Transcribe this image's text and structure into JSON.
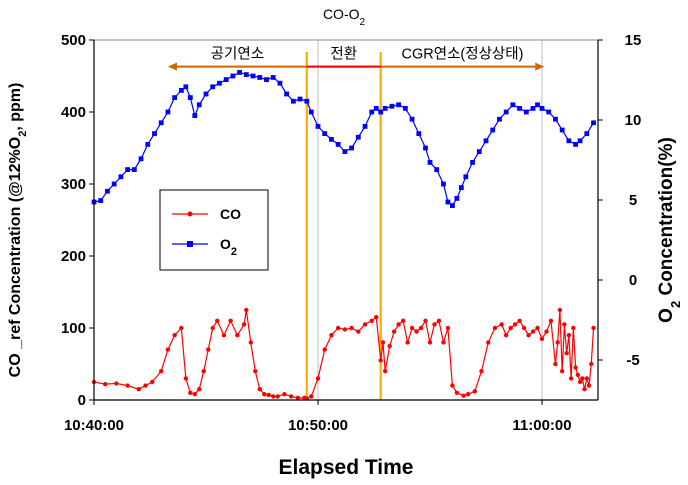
{
  "chart_data": {
    "type": "line",
    "title": "CO-O",
    "title_sub": "2",
    "xlabel": "Elapsed Time",
    "ylabel_left": "CO _ref Concentration (@12%O",
    "ylabel_left_sub": "2",
    "ylabel_left_suffix": ", ppm)",
    "ylabel_right": "O",
    "ylabel_right_sub": "2",
    "ylabel_right_suffix": " Concentration(%)",
    "x_range_minutes": [
      0,
      22.5
    ],
    "x_ticks": [
      {
        "label": "10:40:00",
        "minute": 0
      },
      {
        "label": "10:50:00",
        "minute": 10
      },
      {
        "label": "11:00:00",
        "minute": 20
      }
    ],
    "ylim_left": [
      0,
      500
    ],
    "yticks_left": [
      "0",
      "100",
      "200",
      "300",
      "400",
      "500"
    ],
    "ylim_right": [
      -7.5,
      15
    ],
    "yticks_right": [
      "-5",
      "0",
      "5",
      "10",
      "15"
    ],
    "grid": "vertical gridlines at x ticks",
    "legend": {
      "placement": "center-left",
      "entries": [
        {
          "label": "CO",
          "sub": "",
          "color": "#ff0000",
          "marker": "circle"
        },
        {
          "label": "O",
          "sub": "2",
          "color": "#0000ff",
          "marker": "square"
        }
      ]
    },
    "phase_lines_minute": [
      9.5,
      12.8
    ],
    "phase_line_color": "#ffaa00",
    "annotations": {
      "air_combustion": "공기연소",
      "transition": "전환",
      "cgr_combustion": "CGR연소(정상상태)",
      "arrow_color": "#cc6600",
      "arrow_from_minute": 3.3,
      "arrow_to_minute": 20.1,
      "arrow_value_left": 463,
      "transition_bar_from_minute": 9.5,
      "transition_bar_to_minute": 12.8,
      "transition_bar_color": "#ff0000"
    },
    "series": [
      {
        "name": "CO",
        "axis": "left",
        "color": "#ff0000",
        "marker": "circle",
        "x": [
          0,
          0.5,
          1,
          1.5,
          2,
          2.3,
          2.6,
          3,
          3.3,
          3.6,
          3.9,
          4.1,
          4.3,
          4.5,
          4.7,
          4.9,
          5.1,
          5.3,
          5.5,
          5.8,
          6.1,
          6.4,
          6.7,
          6.8,
          7.0,
          7.2,
          7.4,
          7.6,
          7.8,
          8.0,
          8.2,
          8.5,
          8.8,
          9.1,
          9.4,
          9.5,
          9.7,
          10.0,
          10.3,
          10.6,
          10.9,
          11.2,
          11.5,
          11.8,
          12.1,
          12.4,
          12.6,
          12.8,
          12.9,
          13.0,
          13.2,
          13.4,
          13.6,
          13.8,
          14.0,
          14.2,
          14.4,
          14.6,
          14.8,
          15.0,
          15.2,
          15.4,
          15.6,
          15.8,
          16.0,
          16.2,
          16.5,
          16.7,
          17.0,
          17.3,
          17.6,
          17.9,
          18.2,
          18.4,
          18.6,
          18.8,
          19.0,
          19.2,
          19.4,
          19.6,
          19.8,
          20.0,
          20.2,
          20.4,
          20.6,
          20.7,
          20.8,
          20.9,
          21.0,
          21.1,
          21.2,
          21.3,
          21.4,
          21.5,
          21.6,
          21.7,
          21.8,
          21.9,
          22.0,
          22.1,
          22.2,
          22.3
        ],
        "values": [
          25,
          22,
          23,
          20,
          15,
          20,
          25,
          40,
          70,
          90,
          100,
          30,
          10,
          8,
          15,
          40,
          70,
          100,
          110,
          90,
          110,
          90,
          105,
          125,
          80,
          40,
          15,
          8,
          7,
          5,
          5,
          8,
          5,
          3,
          3,
          2,
          5,
          30,
          70,
          90,
          100,
          98,
          100,
          95,
          105,
          110,
          115,
          55,
          80,
          40,
          75,
          95,
          105,
          110,
          80,
          100,
          95,
          100,
          110,
          80,
          105,
          110,
          80,
          100,
          20,
          10,
          6,
          8,
          12,
          40,
          80,
          100,
          105,
          90,
          100,
          105,
          110,
          100,
          90,
          95,
          100,
          85,
          95,
          110,
          50,
          80,
          125,
          40,
          105,
          65,
          90,
          30,
          100,
          45,
          35,
          25,
          30,
          15,
          30,
          20,
          50,
          100
        ]
      },
      {
        "name": "O2",
        "axis": "right",
        "color": "#0000ff",
        "marker": "square",
        "x": [
          0,
          0.3,
          0.6,
          0.9,
          1.2,
          1.5,
          1.8,
          2.1,
          2.4,
          2.7,
          3.0,
          3.3,
          3.6,
          3.9,
          4.1,
          4.3,
          4.5,
          4.7,
          5.0,
          5.3,
          5.6,
          5.9,
          6.2,
          6.5,
          6.8,
          7.1,
          7.4,
          7.7,
          8.0,
          8.3,
          8.6,
          8.9,
          9.2,
          9.5,
          9.7,
          10.0,
          10.3,
          10.6,
          10.9,
          11.2,
          11.5,
          11.8,
          12.1,
          12.4,
          12.6,
          12.8,
          13.0,
          13.3,
          13.6,
          13.9,
          14.2,
          14.5,
          14.8,
          15.0,
          15.3,
          15.6,
          15.8,
          16.0,
          16.2,
          16.4,
          16.6,
          16.9,
          17.2,
          17.5,
          17.8,
          18.1,
          18.4,
          18.7,
          19.0,
          19.3,
          19.6,
          19.8,
          20.0,
          20.3,
          20.6,
          20.9,
          21.2,
          21.5,
          21.7,
          22.0,
          22.3
        ],
        "values": [
          275,
          277,
          290,
          300,
          310,
          320,
          320,
          335,
          355,
          370,
          385,
          400,
          420,
          430,
          435,
          420,
          395,
          410,
          425,
          435,
          440,
          445,
          450,
          455,
          452,
          450,
          448,
          445,
          448,
          440,
          425,
          415,
          418,
          415,
          400,
          380,
          370,
          362,
          355,
          345,
          350,
          365,
          380,
          400,
          405,
          400,
          405,
          408,
          410,
          405,
          390,
          370,
          350,
          330,
          320,
          300,
          275,
          270,
          280,
          295,
          310,
          330,
          345,
          360,
          375,
          390,
          400,
          410,
          405,
          400,
          405,
          410,
          405,
          400,
          390,
          375,
          360,
          355,
          360,
          370,
          385
        ]
      }
    ]
  }
}
